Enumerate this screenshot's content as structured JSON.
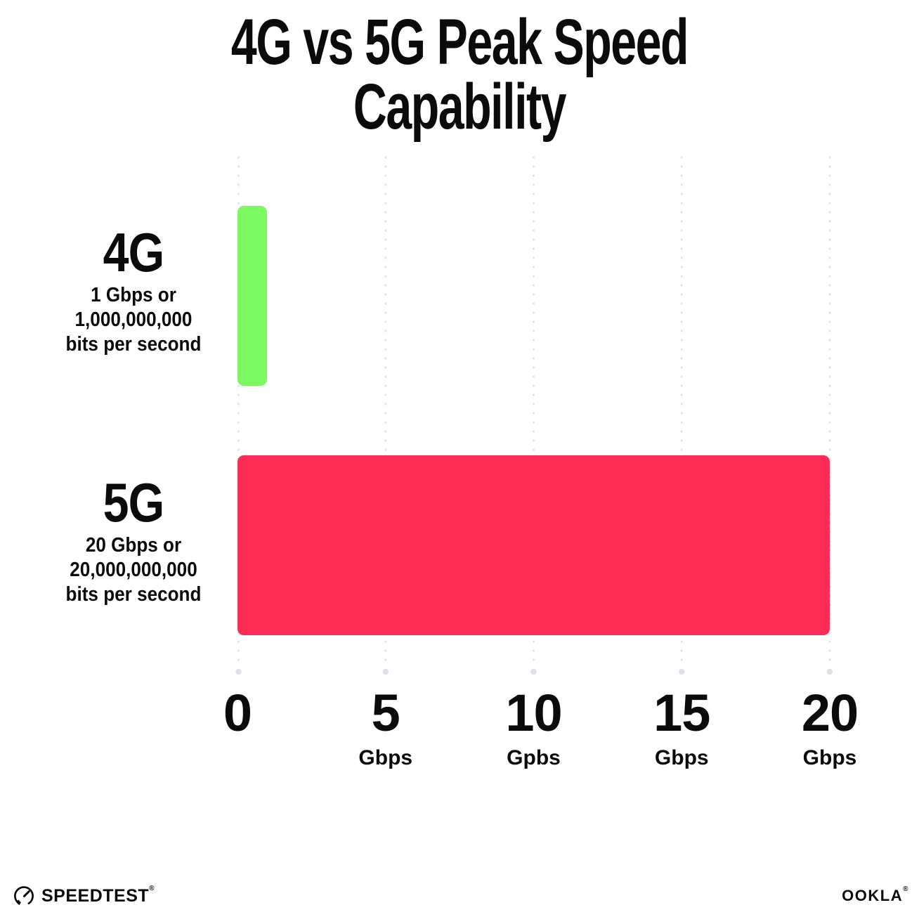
{
  "title": "4G vs 5G Peak Speed Capability",
  "colors": {
    "background": "#FFFFFF",
    "text": "#0B0B0B",
    "grid": "#E0E0EA",
    "bar_4g": "#7CF860",
    "bar_5g": "#FC2C55"
  },
  "chart_data": {
    "type": "bar",
    "orientation": "horizontal",
    "title": "4G vs 5G Peak Speed Capability",
    "categories": [
      "4G",
      "5G"
    ],
    "values": [
      1,
      20
    ],
    "unit": "Gbps",
    "xlim": [
      0,
      20
    ],
    "grid": "vertical-dotted",
    "legend": "none",
    "bars": [
      {
        "label": "4G",
        "value": 1,
        "color": "#7CF860",
        "sublabel_lines": [
          "1 Gbps or",
          "1,000,000,000",
          "bits per second"
        ]
      },
      {
        "label": "5G",
        "value": 20,
        "color": "#FC2C55",
        "sublabel_lines": [
          "20 Gbps or",
          "20,000,000,000",
          "bits per second"
        ]
      }
    ],
    "x_ticks": [
      {
        "value": 0,
        "label": "0",
        "unit": ""
      },
      {
        "value": 5,
        "label": "5",
        "unit": "Gbps"
      },
      {
        "value": 10,
        "label": "10",
        "unit": "Gpbs"
      },
      {
        "value": 15,
        "label": "15",
        "unit": "Gbps"
      },
      {
        "value": 20,
        "label": "20",
        "unit": "Gbps"
      }
    ]
  },
  "footer": {
    "speedtest_icon": "speedometer-gauge-icon",
    "speedtest_text": "SPEEDTEST",
    "speedtest_trademark": "®",
    "ookla_text": "OOKLA",
    "ookla_trademark": "®"
  }
}
